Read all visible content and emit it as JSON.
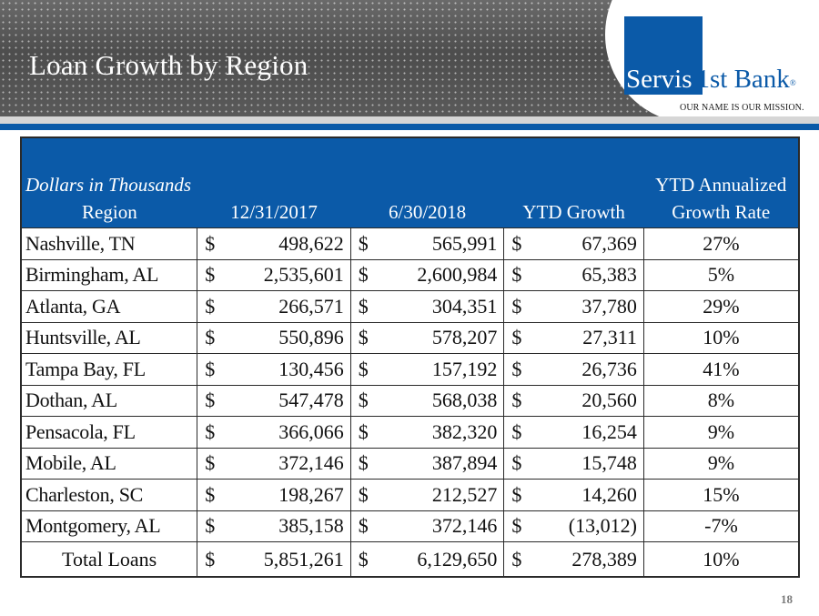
{
  "slide": {
    "title": "Loan Growth by Region",
    "page_number": "18"
  },
  "logo": {
    "name_part1": "Servis",
    "name_part2": "1st Bank",
    "registered": "®",
    "tagline": "OUR NAME IS OUR MISSION."
  },
  "colors": {
    "brand_blue": "#0b5aa8",
    "banner_gray": "#585858"
  },
  "table": {
    "caption": "Dollars in Thousands",
    "headers": {
      "region": "Region",
      "date1": "12/31/2017",
      "date2": "6/30/2018",
      "ytd_growth": "YTD Growth",
      "rate_line1": "YTD Annualized",
      "rate_line2": "Growth Rate"
    },
    "currency_symbol": "$",
    "rows": [
      {
        "region": "Nashville, TN",
        "v2017": "498,622",
        "v2018": "565,991",
        "growth": "67,369",
        "rate": "27%"
      },
      {
        "region": "Birmingham, AL",
        "v2017": "2,535,601",
        "v2018": "2,600,984",
        "growth": "65,383",
        "rate": "5%"
      },
      {
        "region": "Atlanta, GA",
        "v2017": "266,571",
        "v2018": "304,351",
        "growth": "37,780",
        "rate": "29%"
      },
      {
        "region": "Huntsville, AL",
        "v2017": "550,896",
        "v2018": "578,207",
        "growth": "27,311",
        "rate": "10%"
      },
      {
        "region": "Tampa Bay, FL",
        "v2017": "130,456",
        "v2018": "157,192",
        "growth": "26,736",
        "rate": "41%"
      },
      {
        "region": "Dothan, AL",
        "v2017": "547,478",
        "v2018": "568,038",
        "growth": "20,560",
        "rate": "8%"
      },
      {
        "region": "Pensacola, FL",
        "v2017": "366,066",
        "v2018": "382,320",
        "growth": "16,254",
        "rate": "9%"
      },
      {
        "region": "Mobile, AL",
        "v2017": "372,146",
        "v2018": "387,894",
        "growth": "15,748",
        "rate": "9%"
      },
      {
        "region": "Charleston, SC",
        "v2017": "198,267",
        "v2018": "212,527",
        "growth": "14,260",
        "rate": "15%"
      },
      {
        "region": "Montgomery, AL",
        "v2017": "385,158",
        "v2018": "372,146",
        "growth": "(13,012)",
        "rate": "-7%"
      }
    ],
    "total": {
      "region": "Total Loans",
      "v2017": "5,851,261",
      "v2018": "6,129,650",
      "growth": "278,389",
      "rate": "10%"
    }
  }
}
